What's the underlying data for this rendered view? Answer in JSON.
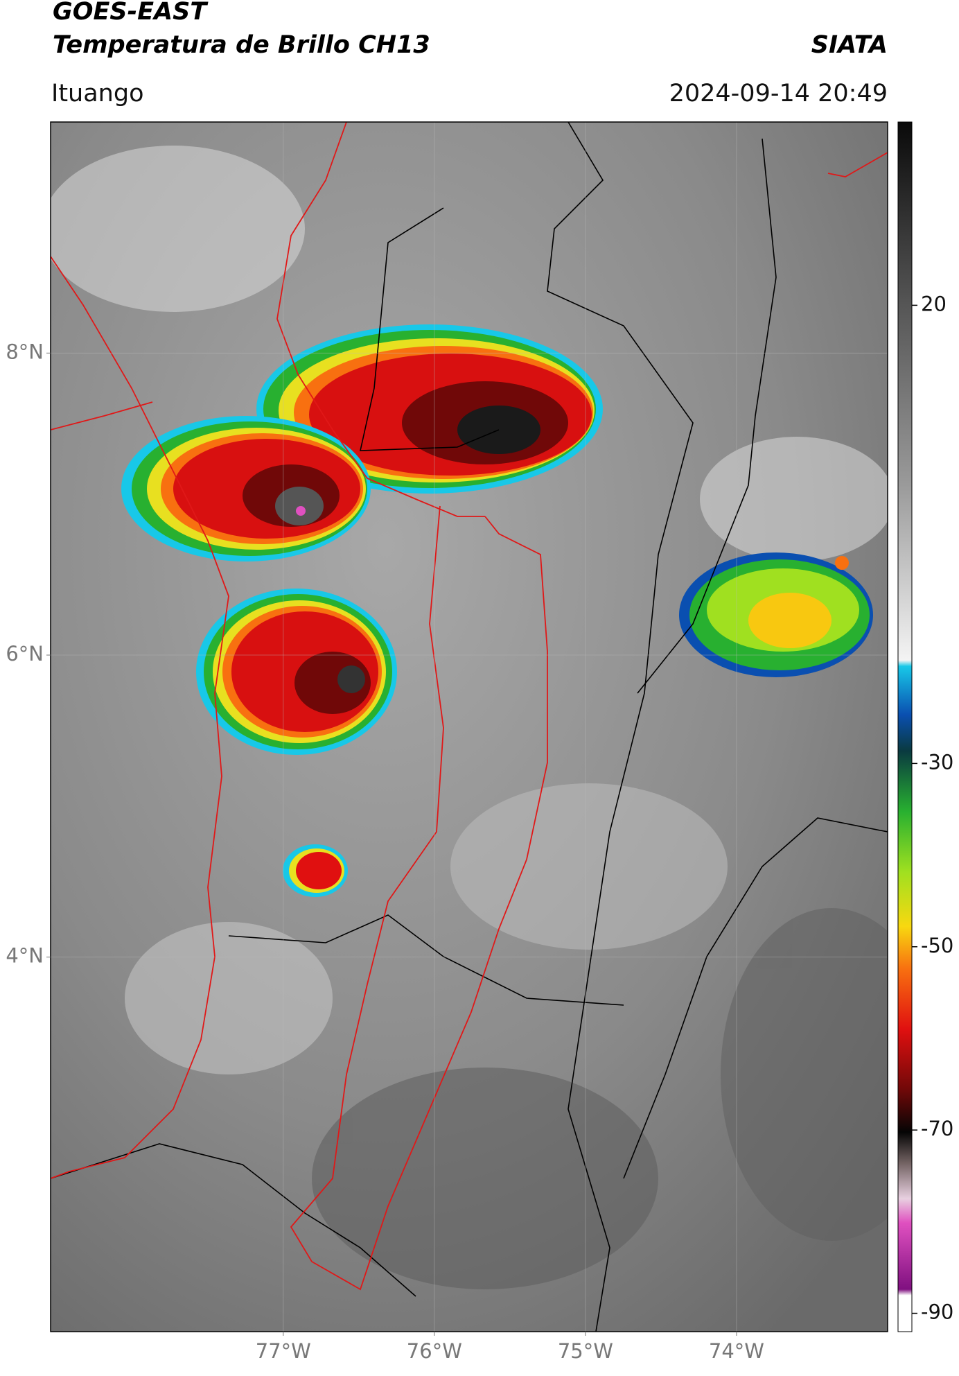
{
  "header": {
    "title": "GOES-EAST",
    "subtitle": "Temperatura de Brillo CH13",
    "source": "SIATA",
    "region": "Ituango",
    "datetime": "2024-09-14 20:49"
  },
  "map": {
    "xlim": [
      -78.54,
      -73.0
    ],
    "ylim": [
      1.52,
      9.53
    ],
    "xticks": [
      {
        "value": -77,
        "label": "77°W"
      },
      {
        "value": -76,
        "label": "76°W"
      },
      {
        "value": -75,
        "label": "75°W"
      },
      {
        "value": -74,
        "label": "74°W"
      }
    ],
    "yticks": [
      {
        "value": 4,
        "label": "4°N"
      },
      {
        "value": 6,
        "label": "6°N"
      },
      {
        "value": 8,
        "label": "8°N"
      }
    ]
  },
  "colorbar": {
    "lim": [
      -92,
      40
    ],
    "ticks": [
      -90,
      -70,
      -50,
      -30,
      20
    ]
  }
}
